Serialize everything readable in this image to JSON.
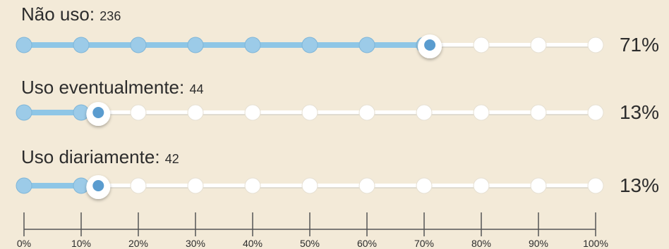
{
  "chart_data": {
    "type": "bar",
    "series": [
      {
        "name": "Não uso:",
        "count": "236",
        "value": 71,
        "pct_label": "71%"
      },
      {
        "name": "Uso eventualmente:",
        "count": "44",
        "value": 13,
        "pct_label": "13%"
      },
      {
        "name": "Uso diariamente:",
        "count": "42",
        "value": 13,
        "pct_label": "13%"
      }
    ],
    "xticks": [
      "0%",
      "10%",
      "20%",
      "30%",
      "40%",
      "50%",
      "60%",
      "70%",
      "80%",
      "90%",
      "100%"
    ],
    "xlim": [
      0,
      100
    ],
    "colors": {
      "fill": "#8ec6e6",
      "node_fill": "#9ccbe8",
      "empty": "#ffffff",
      "track": "#d8d3c8",
      "marker": "#5a9ccf",
      "text": "#2c2c2c",
      "axis": "#555555"
    }
  }
}
